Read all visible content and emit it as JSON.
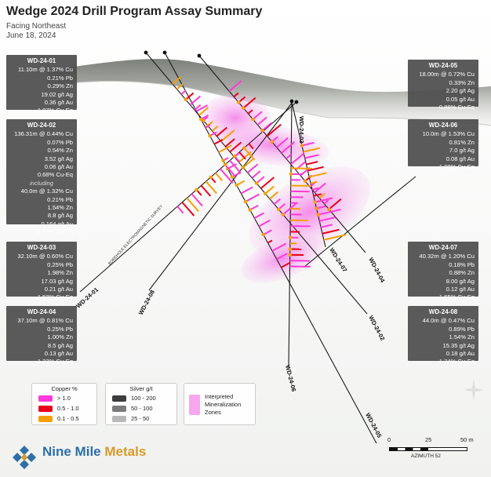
{
  "title": "Wedge 2024 Drill Program Assay Summary",
  "subtitle": [
    "Facing Northeast",
    "June 18, 2024"
  ],
  "holes": [
    {
      "label": "WD-24-01",
      "lines": [
        "11.10m @ 1.37% Cu",
        "0.21% Pb",
        "0.29% Zn",
        "19.02 g/t Ag",
        "0.36 g/t Au",
        "1.97% Cu-Eq"
      ]
    },
    {
      "label": "WD-24-02",
      "lines": [
        "136.31m @ 0.44% Cu",
        "0.07% Pb",
        "0.54% Zn",
        "3.52 g/t Ag",
        "0.06 g/t Au",
        "0.68% Cu-Eq"
      ],
      "including": "including",
      "lines2": [
        "40.0m @ 1.32% Cu",
        "0.21% Pb",
        "1.54% Zn",
        "8.8 g/t Ag",
        "0.164 g/t Au",
        "2.03% Cu-Eq"
      ]
    },
    {
      "label": "WD-24-03",
      "lines": [
        "32.10m @ 0.60% Cu",
        "0.25% Pb",
        "1.98% Zn",
        "17.03 g/t Ag",
        "0.21 g/t Au",
        "1.58% Cu-Eq"
      ]
    },
    {
      "label": "WD-24-04",
      "lines": [
        "37.10m @ 0.81% Cu",
        "0.25% Pb",
        "1.00% Zn",
        "8.5 g/t Ag",
        "0.13 g/t Au",
        "1.33% Cu-Eq"
      ]
    },
    {
      "label": "WD-24-05",
      "lines": [
        "18.00m @ 0.72% Cu",
        "0.33% Zn",
        "2.20 g/t Ag",
        "0.05 g/t Au",
        "0.88% Cu-Eq"
      ]
    },
    {
      "label": "WD-24-06",
      "lines": [
        "10.0m @ 1.53% Cu",
        "0.81% Zn",
        "7.0 g/t Ag",
        "0.08 g/t Au",
        "1.88% Cu-Eq"
      ]
    },
    {
      "label": "WD-24-07",
      "lines": [
        "40.32m @ 1.20% Cu",
        "0.18% Pb",
        "0.88% Zn",
        "8.00 g/t Ag",
        "0.12 g/t Au",
        "1.65% Cu-Eq"
      ]
    },
    {
      "label": "WD-24-08",
      "lines": [
        "44.0m @ 0.47% Cu",
        "0.89% Pb",
        "1.54% Zn",
        "15.35 g/t Ag",
        "0.18 g/t Au",
        "1.34% Cu-Eq"
      ]
    }
  ],
  "survey_label": "BOREHOLE ELECTROMAGNETIC SURVEY",
  "legend": {
    "copper": {
      "title": "Copper %",
      "items": [
        {
          "label": "> 1.0",
          "color": "#ff3ad8"
        },
        {
          "label": "0.5 - 1.0",
          "color": "#e8001c"
        },
        {
          "label": "0.1 - 0.5",
          "color": "#f5a000"
        }
      ]
    },
    "silver": {
      "title": "Silver g/t",
      "items": [
        {
          "label": "100 - 200",
          "color": "#3c3c3c"
        },
        {
          "label": "50 - 100",
          "color": "#7a7a7a"
        },
        {
          "label": "25 - 50",
          "color": "#b8b8b8"
        }
      ]
    },
    "zones": {
      "label": "Interpreted Mineralization Zones",
      "color": "#f7a6ef"
    }
  },
  "scale": {
    "ticks": [
      "0",
      "25",
      "50 m"
    ],
    "azimuth": "AZIMUTH 52"
  },
  "brand": {
    "name_a": "Nine Mile",
    "name_b": "Metals"
  },
  "colors": {
    "copper_high": "#ff3ad8",
    "copper_mid": "#e8001c",
    "copper_low": "#f5a000",
    "zone": "#f7a6ef",
    "terrain": "#8d918c",
    "box": "#4e4e4e",
    "brand_blue": "#2e6fa8",
    "brand_gold": "#d79a2b"
  }
}
